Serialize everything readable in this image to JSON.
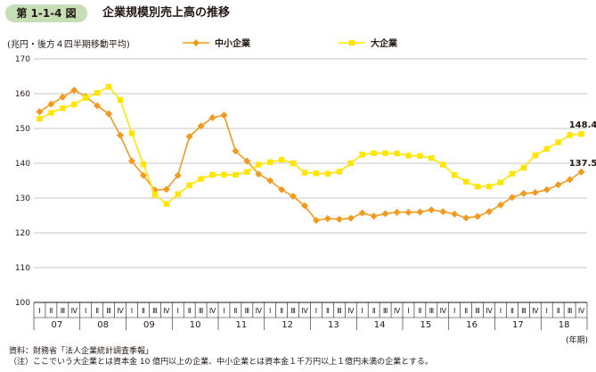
{
  "header": {
    "figure_number": "第 1-1-4 図",
    "title": "企業規模別売上高の推移"
  },
  "colors": {
    "sme": "#f39a1e",
    "large": "#ffe500",
    "grid": "#b5b5b5",
    "badge": "#c5deb4"
  },
  "chart_data": {
    "type": "line",
    "ylabel": "(兆円・後方４四半期移動平均)",
    "xlabel": "(年期)",
    "ylim": [
      100,
      170
    ],
    "yticks": [
      100,
      110,
      120,
      130,
      140,
      150,
      160,
      170
    ],
    "grid": "horizontal",
    "legend_position": "top",
    "quarter_labels": [
      "Ⅰ",
      "Ⅱ",
      "Ⅲ",
      "Ⅳ"
    ],
    "years": [
      "07",
      "08",
      "09",
      "10",
      "11",
      "12",
      "13",
      "14",
      "15",
      "16",
      "17",
      "18"
    ],
    "series": [
      {
        "name": "中小企業",
        "color": "#f39a1e",
        "marker": "diamond",
        "end_label": "137.5",
        "values": [
          154.8,
          157.0,
          159.0,
          161.0,
          159.2,
          156.5,
          154.2,
          148.0,
          140.6,
          136.5,
          132.3,
          132.5,
          136.5,
          147.7,
          150.7,
          153.1,
          153.8,
          143.5,
          140.6,
          136.9,
          135.0,
          132.4,
          130.5,
          127.8,
          123.6,
          124.1,
          123.9,
          124.2,
          125.7,
          124.8,
          125.5,
          125.9,
          125.9,
          126.0,
          126.6,
          126.1,
          125.4,
          124.3,
          124.7,
          126.1,
          128.0,
          130.2,
          131.3,
          131.6,
          132.4,
          133.8,
          135.3,
          137.5
        ]
      },
      {
        "name": "大企業",
        "color": "#ffe500",
        "marker": "square",
        "end_label": "148.4",
        "values": [
          152.8,
          154.5,
          155.8,
          156.9,
          158.8,
          160.2,
          162.0,
          158.2,
          148.6,
          139.7,
          131.0,
          128.3,
          131.1,
          133.7,
          135.5,
          136.7,
          136.7,
          136.7,
          137.5,
          139.6,
          140.3,
          141.0,
          140.0,
          137.3,
          137.1,
          137.0,
          137.6,
          140.0,
          142.5,
          142.9,
          142.9,
          142.8,
          142.2,
          142.1,
          141.5,
          139.6,
          136.6,
          134.7,
          133.3,
          133.3,
          134.5,
          137.0,
          138.7,
          142.3,
          144.1,
          146.0,
          148.1,
          148.4
        ]
      }
    ]
  },
  "notes": [
    "資料：財務省「法人企業統計調査季報」",
    "（注）ここでいう大企業とは資本金 10 億円以上の企業、中小企業とは資本金１千万円以上１億円未満の企業とする。"
  ]
}
